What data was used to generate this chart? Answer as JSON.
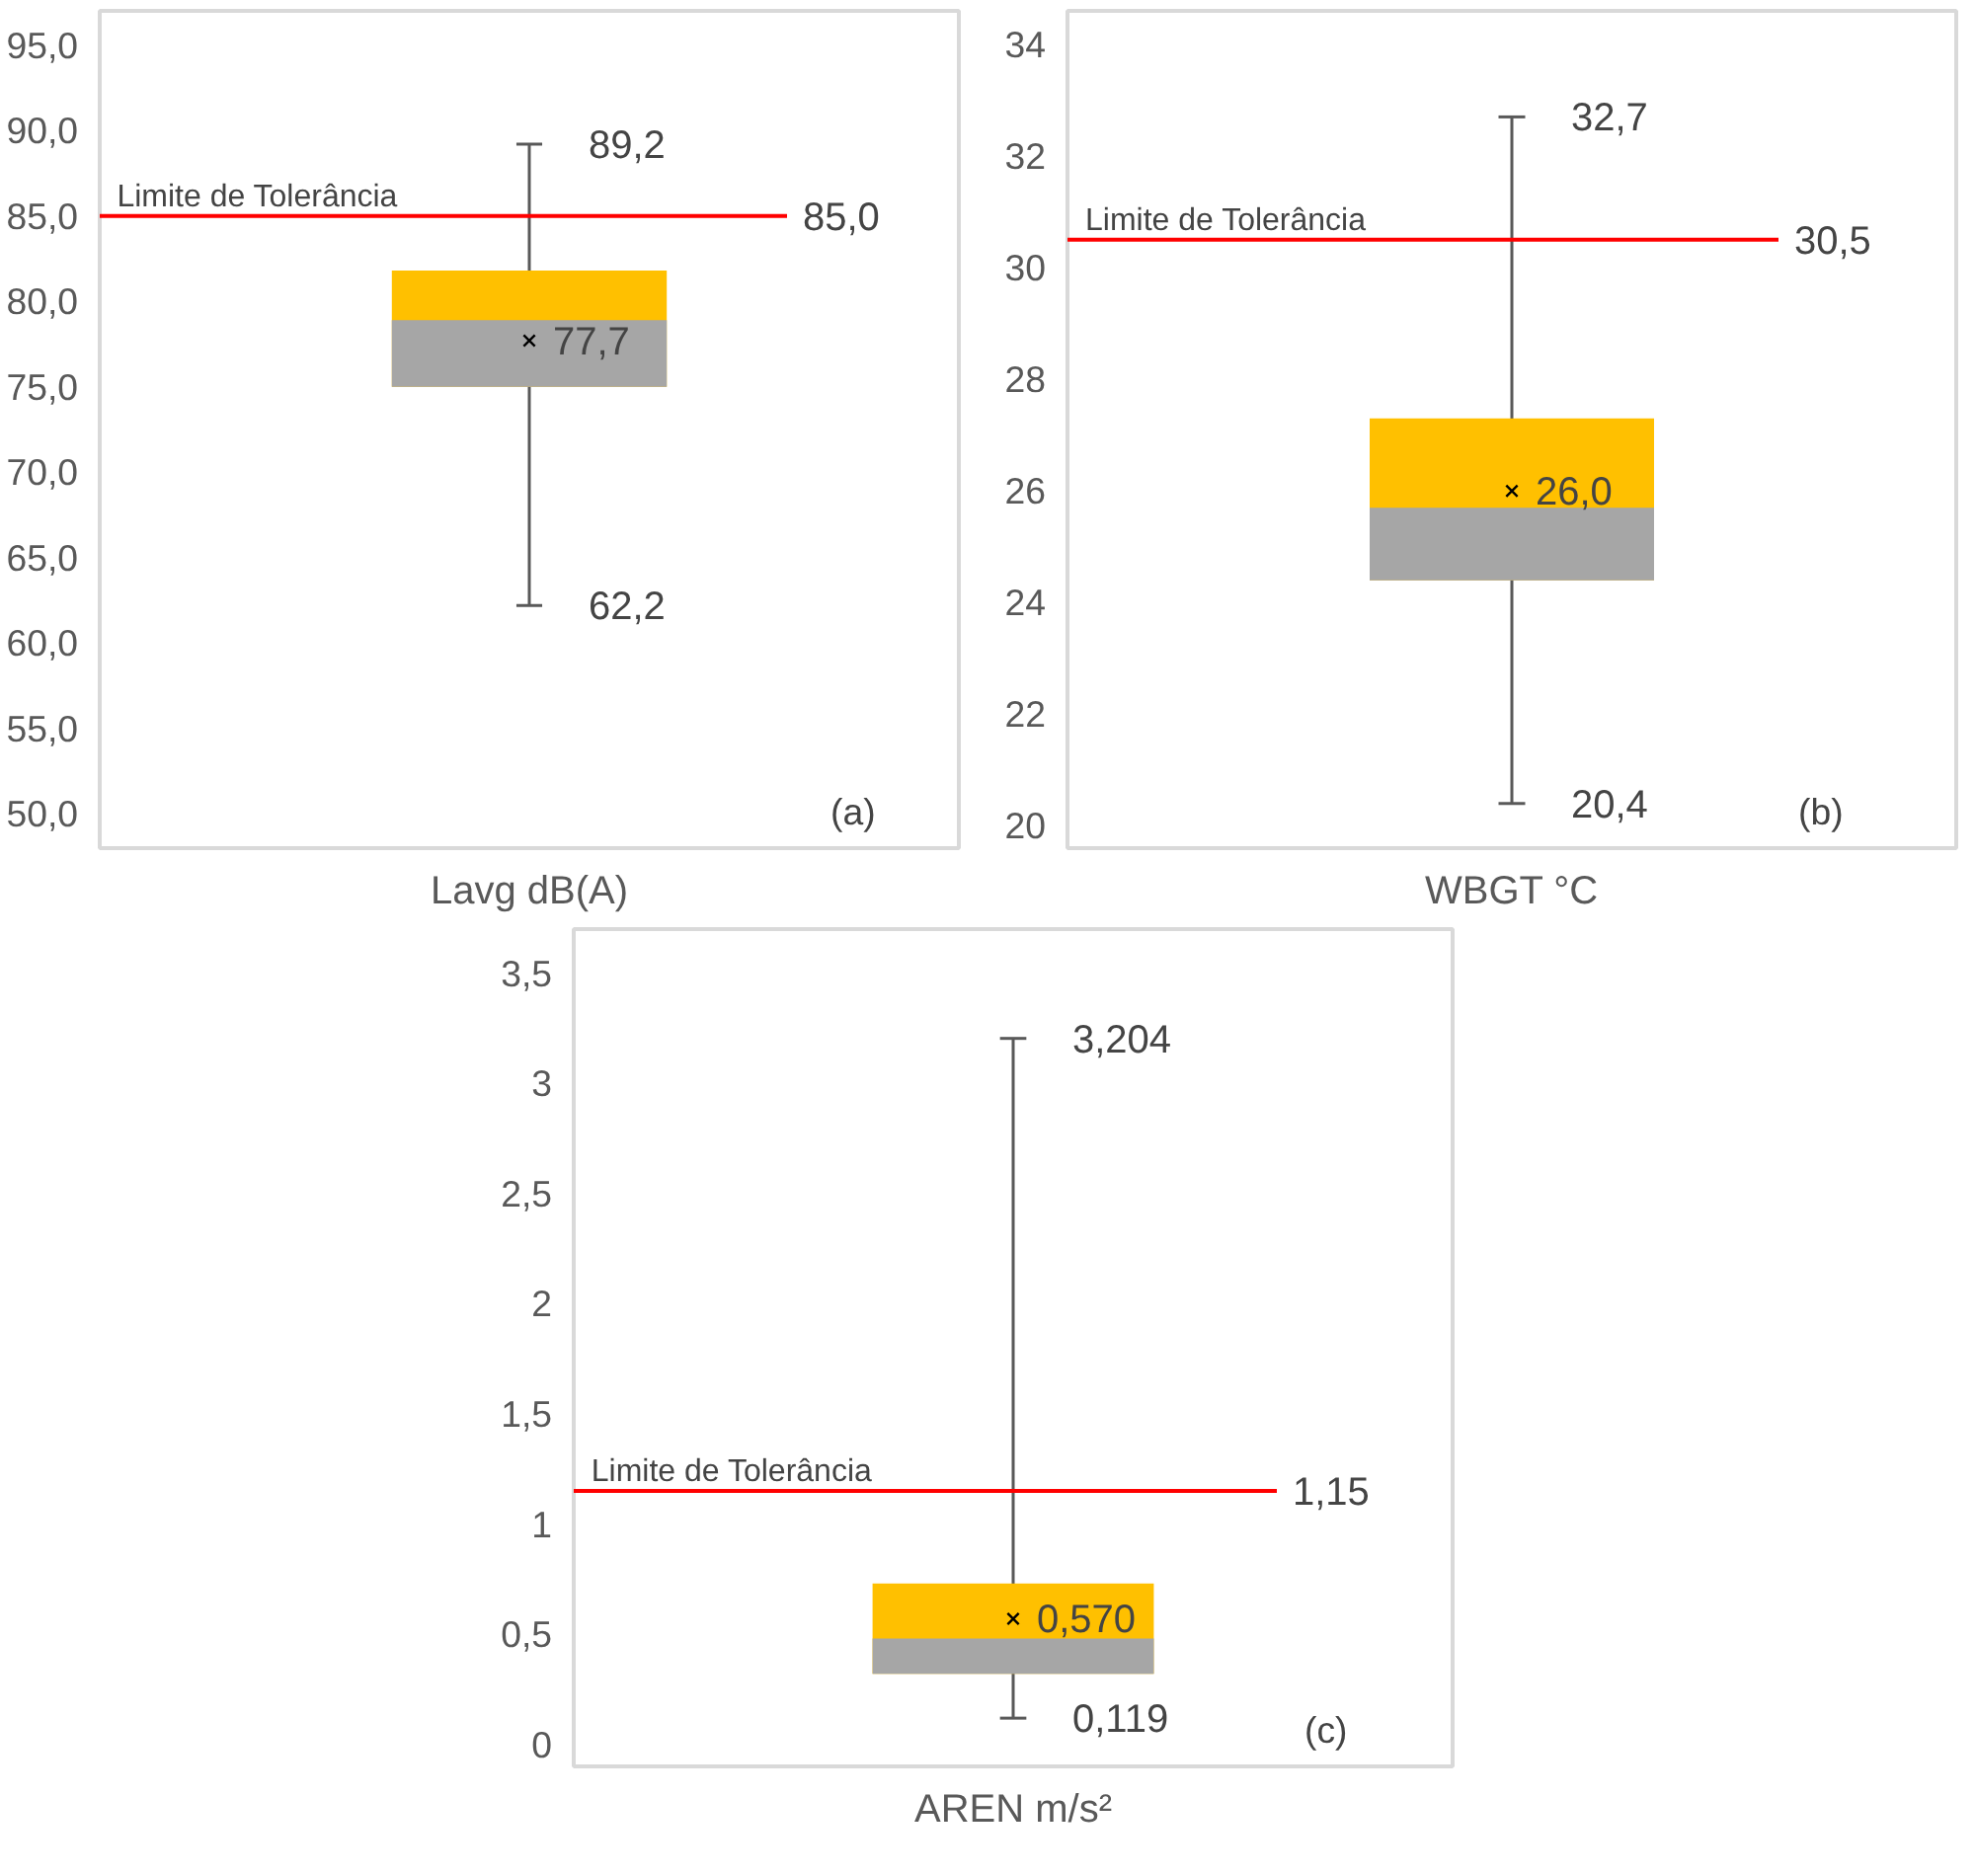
{
  "chart_data": [
    {
      "type": "box",
      "xlabel": "Lavg dB(A)",
      "categories": [
        null
      ],
      "series": [
        {
          "color": "#ffc000",
          "boxes": [
            {
              "low": 62.2,
              "q1": 75.0,
              "median": 78.9,
              "q3": 81.8,
              "high": 89.2,
              "mean": 77.7
            }
          ]
        }
      ],
      "ylim": [
        48,
        97
      ],
      "yticks": [
        {
          "value": 50,
          "label": "50,0"
        },
        {
          "value": 55,
          "label": "55,0"
        },
        {
          "value": 60,
          "label": "60,0"
        },
        {
          "value": 65,
          "label": "65,0"
        },
        {
          "value": 70,
          "label": "70,0"
        },
        {
          "value": 75,
          "label": "75,0"
        },
        {
          "value": 80,
          "label": "80,0"
        },
        {
          "value": 85,
          "label": "85,0"
        },
        {
          "value": 90,
          "label": "90,0"
        },
        {
          "value": 95,
          "label": "95,0"
        }
      ],
      "ref_lines": [
        {
          "axis": "y",
          "value": 85.0,
          "label": "Limite de Tolerância",
          "color": "#ff0000"
        }
      ],
      "annotations": [
        "89,2",
        "62,2",
        "77,7",
        "85,0",
        "(a)"
      ],
      "tick_labels": "y"
    },
    {
      "type": "box",
      "xlabel": "WBGT °C",
      "categories": [
        null
      ],
      "series": [
        {
          "color": "#ffc000",
          "boxes": [
            {
              "low": 20.4,
              "q1": 24.4,
              "median": 25.7,
              "q3": 27.3,
              "high": 32.7,
              "mean": 26.0
            }
          ]
        }
      ],
      "ylim": [
        19.6,
        34.6
      ],
      "yticks": [
        20,
        22,
        24,
        26,
        28,
        30,
        32,
        34
      ],
      "ref_lines": [
        {
          "axis": "y",
          "value": 30.5,
          "label": "Limite de Tolerância",
          "color": "#ff0000"
        }
      ],
      "annotations": [
        "32,7",
        "20,4",
        "26,0",
        "30,5",
        "(b)"
      ],
      "tick_labels": "y"
    },
    {
      "type": "box",
      "xlabel": "AREN m/s²",
      "categories": [
        null
      ],
      "series": [
        {
          "color": "#ffc000",
          "boxes": [
            {
              "low": 0.119,
              "q1": 0.32,
              "median": 0.48,
              "q3": 0.73,
              "high": 3.204,
              "mean": 0.57
            }
          ]
        }
      ],
      "ylim": [
        -0.1,
        3.7
      ],
      "yticks": [
        0,
        {
          "value": 0.5,
          "label": "0,5"
        },
        1,
        {
          "value": 1.5,
          "label": "1,5"
        },
        2,
        {
          "value": 2.5,
          "label": "2,5"
        },
        3,
        {
          "value": 3.5,
          "label": "3,5"
        }
      ],
      "ref_lines": [
        {
          "axis": "y",
          "value": 1.15,
          "label": "Limite de Tolerância",
          "color": "#ff0000"
        }
      ],
      "annotations": [
        "3,204",
        "0,119",
        "0,570",
        "1,15",
        "(c)"
      ],
      "tick_labels": "y"
    }
  ]
}
